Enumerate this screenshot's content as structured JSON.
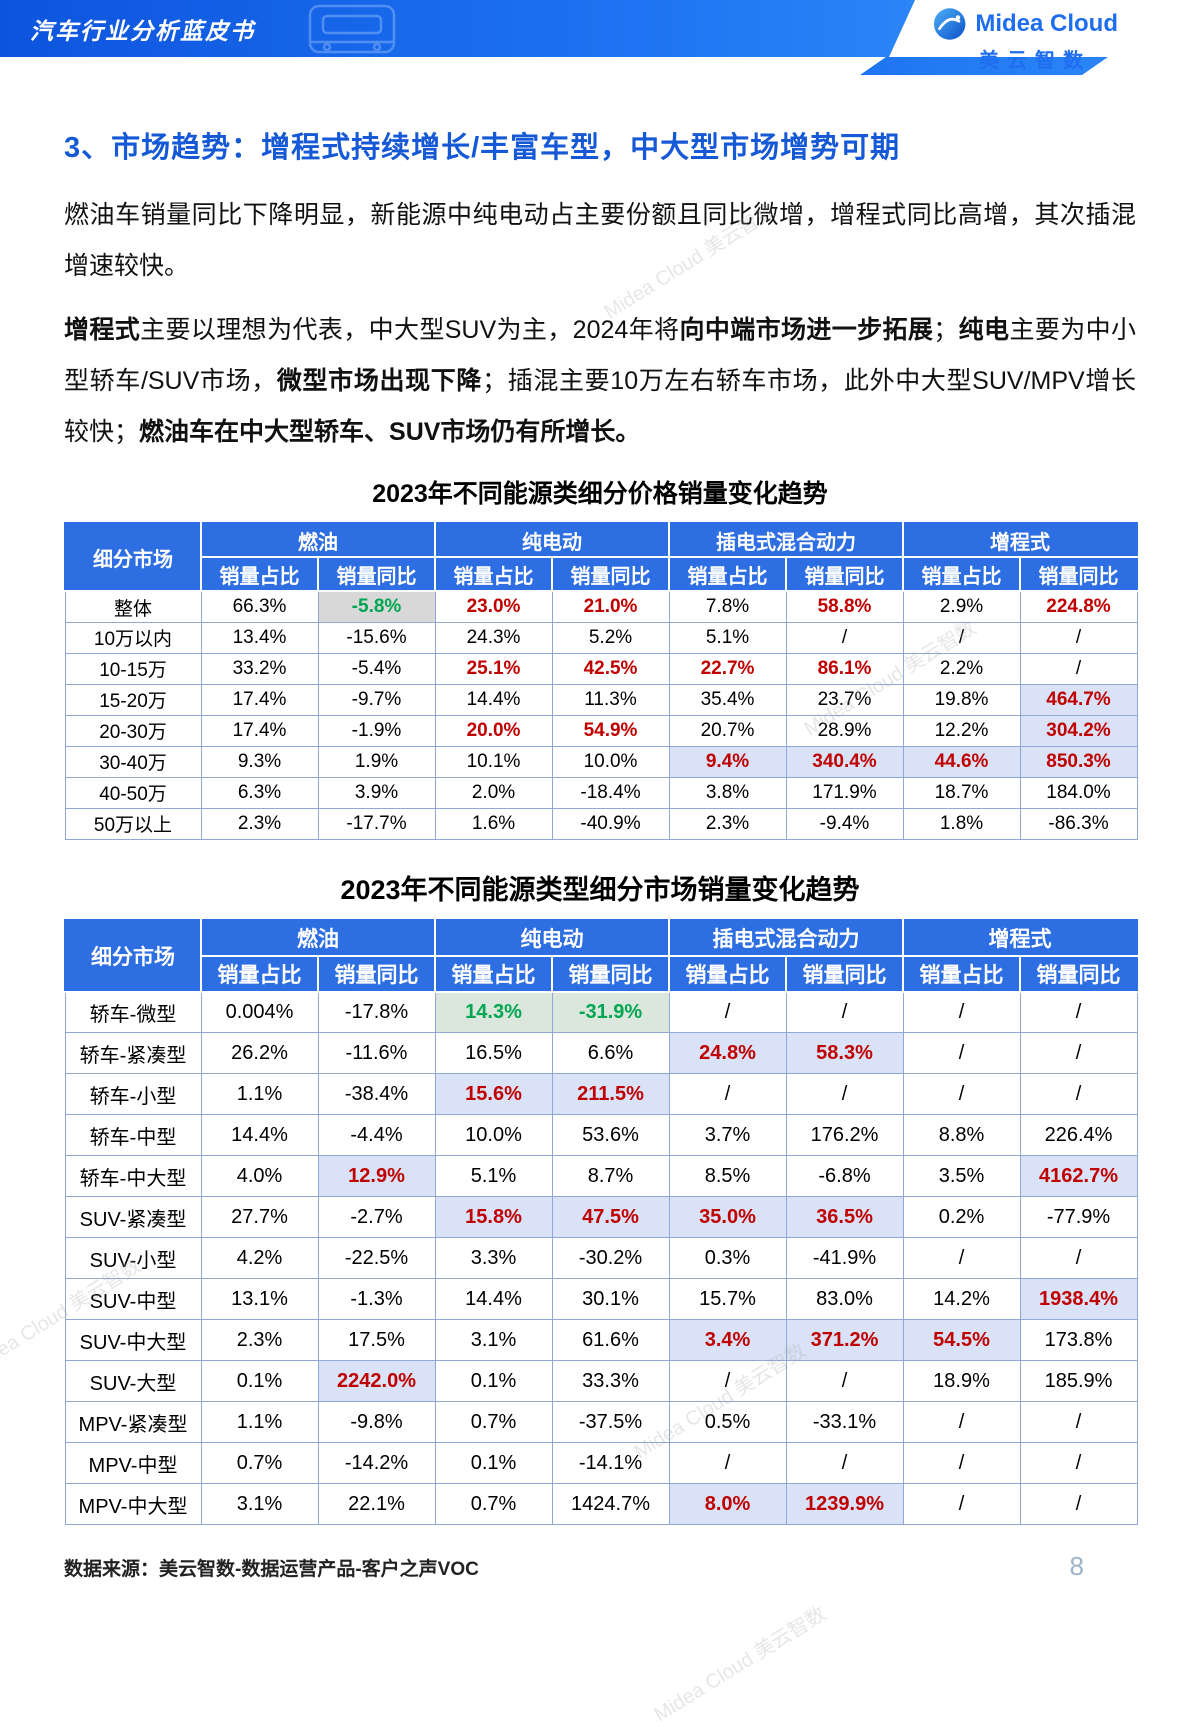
{
  "header": {
    "banner_title": "汽车行业分析蓝皮书",
    "logo_text": "Midea Cloud",
    "logo_subtext": "美云智数"
  },
  "page": {
    "section_title": "3、市场趋势：增程式持续增长/丰富车型，中大型市场增势可期",
    "intro1": "燃油车销量同比下降明显，新能源中纯电动占主要份额且同比微增，增程式同比高增，其次插混增速较快。",
    "intro2_segments": [
      {
        "text": "增程式",
        "bold": true
      },
      {
        "text": "主要以理想为代表，中大型SUV为主，2024年将",
        "bold": false
      },
      {
        "text": "向中端市场进一步拓展",
        "bold": true
      },
      {
        "text": "；",
        "bold": false
      },
      {
        "text": "纯电",
        "bold": true
      },
      {
        "text": "主要为中小型轿车/SUV市场，",
        "bold": false
      },
      {
        "text": "微型市场出现下降",
        "bold": true
      },
      {
        "text": "；插混主要10万左右轿车市场，此外中大型SUV/MPV增长较快；",
        "bold": false
      },
      {
        "text": "燃油车在中大型轿车、SUV市场仍有所增长。",
        "bold": true
      }
    ],
    "footer_source": "数据来源：美云智数-数据运营产品-客户之声VOC",
    "page_number": "8",
    "watermark": "Midea Cloud 美云智数"
  },
  "colors": {
    "banner_blue": "#1e74f2",
    "title_blue": "#1659d6",
    "table_header_blue": "#2d6ee2",
    "highlight_bg": "#d9e2f7",
    "up_red": "#c00000",
    "down_green": "#00a651"
  },
  "table_header": {
    "corner": "细分市场",
    "groups": [
      "燃油",
      "纯电动",
      "插电式混合动力",
      "增程式"
    ],
    "sub": [
      "销量占比",
      "销量同比"
    ]
  },
  "table1": {
    "title": "2023年不同能源类细分价格销量变化趋势",
    "rows": [
      {
        "label": "整体",
        "cells": [
          {
            "v": "66.3%",
            "s": "n"
          },
          {
            "v": "-5.8%",
            "s": "gg"
          },
          {
            "v": "23.0%",
            "s": "r"
          },
          {
            "v": "21.0%",
            "s": "r"
          },
          {
            "v": "7.8%",
            "s": "n"
          },
          {
            "v": "58.8%",
            "s": "r"
          },
          {
            "v": "2.9%",
            "s": "n"
          },
          {
            "v": "224.8%",
            "s": "r"
          }
        ]
      },
      {
        "label": "10万以内",
        "cells": [
          {
            "v": "13.4%",
            "s": "n"
          },
          {
            "v": "-15.6%",
            "s": "n"
          },
          {
            "v": "24.3%",
            "s": "n"
          },
          {
            "v": "5.2%",
            "s": "n"
          },
          {
            "v": "5.1%",
            "s": "n"
          },
          {
            "v": "/",
            "s": "n"
          },
          {
            "v": "/",
            "s": "n"
          },
          {
            "v": "/",
            "s": "n"
          }
        ]
      },
      {
        "label": "10-15万",
        "cells": [
          {
            "v": "33.2%",
            "s": "n"
          },
          {
            "v": "-5.4%",
            "s": "n"
          },
          {
            "v": "25.1%",
            "s": "r"
          },
          {
            "v": "42.5%",
            "s": "r"
          },
          {
            "v": "22.7%",
            "s": "r"
          },
          {
            "v": "86.1%",
            "s": "r"
          },
          {
            "v": "2.2%",
            "s": "n"
          },
          {
            "v": "/",
            "s": "n"
          }
        ]
      },
      {
        "label": "15-20万",
        "cells": [
          {
            "v": "17.4%",
            "s": "n"
          },
          {
            "v": "-9.7%",
            "s": "n"
          },
          {
            "v": "14.4%",
            "s": "n"
          },
          {
            "v": "11.3%",
            "s": "n"
          },
          {
            "v": "35.4%",
            "s": "n"
          },
          {
            "v": "23.7%",
            "s": "n"
          },
          {
            "v": "19.8%",
            "s": "n"
          },
          {
            "v": "464.7%",
            "s": "rh"
          }
        ]
      },
      {
        "label": "20-30万",
        "cells": [
          {
            "v": "17.4%",
            "s": "n"
          },
          {
            "v": "-1.9%",
            "s": "n"
          },
          {
            "v": "20.0%",
            "s": "r"
          },
          {
            "v": "54.9%",
            "s": "r"
          },
          {
            "v": "20.7%",
            "s": "n"
          },
          {
            "v": "28.9%",
            "s": "n"
          },
          {
            "v": "12.2%",
            "s": "n"
          },
          {
            "v": "304.2%",
            "s": "rh"
          }
        ]
      },
      {
        "label": "30-40万",
        "cells": [
          {
            "v": "9.3%",
            "s": "n"
          },
          {
            "v": "1.9%",
            "s": "n"
          },
          {
            "v": "10.1%",
            "s": "n"
          },
          {
            "v": "10.0%",
            "s": "n"
          },
          {
            "v": "9.4%",
            "s": "rh"
          },
          {
            "v": "340.4%",
            "s": "rh"
          },
          {
            "v": "44.6%",
            "s": "rh"
          },
          {
            "v": "850.3%",
            "s": "rh"
          }
        ]
      },
      {
        "label": "40-50万",
        "cells": [
          {
            "v": "6.3%",
            "s": "n"
          },
          {
            "v": "3.9%",
            "s": "n"
          },
          {
            "v": "2.0%",
            "s": "n"
          },
          {
            "v": "-18.4%",
            "s": "n"
          },
          {
            "v": "3.8%",
            "s": "n"
          },
          {
            "v": "171.9%",
            "s": "n"
          },
          {
            "v": "18.7%",
            "s": "n"
          },
          {
            "v": "184.0%",
            "s": "n"
          }
        ]
      },
      {
        "label": "50万以上",
        "cells": [
          {
            "v": "2.3%",
            "s": "n"
          },
          {
            "v": "-17.7%",
            "s": "n"
          },
          {
            "v": "1.6%",
            "s": "n"
          },
          {
            "v": "-40.9%",
            "s": "n"
          },
          {
            "v": "2.3%",
            "s": "n"
          },
          {
            "v": "-9.4%",
            "s": "n"
          },
          {
            "v": "1.8%",
            "s": "n"
          },
          {
            "v": "-86.3%",
            "s": "n"
          }
        ]
      }
    ]
  },
  "table2": {
    "title": "2023年不同能源类型细分市场销量变化趋势",
    "rows": [
      {
        "label": "轿车-微型",
        "cells": [
          {
            "v": "0.004%",
            "s": "n"
          },
          {
            "v": "-17.8%",
            "s": "n"
          },
          {
            "v": "14.3%",
            "s": "gh"
          },
          {
            "v": "-31.9%",
            "s": "gh"
          },
          {
            "v": "/",
            "s": "n"
          },
          {
            "v": "/",
            "s": "n"
          },
          {
            "v": "/",
            "s": "n"
          },
          {
            "v": "/",
            "s": "n"
          }
        ]
      },
      {
        "label": "轿车-紧凑型",
        "cells": [
          {
            "v": "26.2%",
            "s": "n"
          },
          {
            "v": "-11.6%",
            "s": "n"
          },
          {
            "v": "16.5%",
            "s": "n"
          },
          {
            "v": "6.6%",
            "s": "n"
          },
          {
            "v": "24.8%",
            "s": "rh"
          },
          {
            "v": "58.3%",
            "s": "rh"
          },
          {
            "v": "/",
            "s": "n"
          },
          {
            "v": "/",
            "s": "n"
          }
        ]
      },
      {
        "label": "轿车-小型",
        "cells": [
          {
            "v": "1.1%",
            "s": "n"
          },
          {
            "v": "-38.4%",
            "s": "n"
          },
          {
            "v": "15.6%",
            "s": "rh"
          },
          {
            "v": "211.5%",
            "s": "rh"
          },
          {
            "v": "/",
            "s": "n"
          },
          {
            "v": "/",
            "s": "n"
          },
          {
            "v": "/",
            "s": "n"
          },
          {
            "v": "/",
            "s": "n"
          }
        ]
      },
      {
        "label": "轿车-中型",
        "cells": [
          {
            "v": "14.4%",
            "s": "n"
          },
          {
            "v": "-4.4%",
            "s": "n"
          },
          {
            "v": "10.0%",
            "s": "n"
          },
          {
            "v": "53.6%",
            "s": "n"
          },
          {
            "v": "3.7%",
            "s": "n"
          },
          {
            "v": "176.2%",
            "s": "n"
          },
          {
            "v": "8.8%",
            "s": "n"
          },
          {
            "v": "226.4%",
            "s": "n"
          }
        ]
      },
      {
        "label": "轿车-中大型",
        "cells": [
          {
            "v": "4.0%",
            "s": "n"
          },
          {
            "v": "12.9%",
            "s": "rh"
          },
          {
            "v": "5.1%",
            "s": "n"
          },
          {
            "v": "8.7%",
            "s": "n"
          },
          {
            "v": "8.5%",
            "s": "n"
          },
          {
            "v": "-6.8%",
            "s": "n"
          },
          {
            "v": "3.5%",
            "s": "n"
          },
          {
            "v": "4162.7%",
            "s": "rh"
          }
        ]
      },
      {
        "label": "SUV-紧凑型",
        "cells": [
          {
            "v": "27.7%",
            "s": "n"
          },
          {
            "v": "-2.7%",
            "s": "n"
          },
          {
            "v": "15.8%",
            "s": "rh"
          },
          {
            "v": "47.5%",
            "s": "rh"
          },
          {
            "v": "35.0%",
            "s": "rh"
          },
          {
            "v": "36.5%",
            "s": "rh"
          },
          {
            "v": "0.2%",
            "s": "n"
          },
          {
            "v": "-77.9%",
            "s": "n"
          }
        ]
      },
      {
        "label": "SUV-小型",
        "cells": [
          {
            "v": "4.2%",
            "s": "n"
          },
          {
            "v": "-22.5%",
            "s": "n"
          },
          {
            "v": "3.3%",
            "s": "n"
          },
          {
            "v": "-30.2%",
            "s": "n"
          },
          {
            "v": "0.3%",
            "s": "n"
          },
          {
            "v": "-41.9%",
            "s": "n"
          },
          {
            "v": "/",
            "s": "n"
          },
          {
            "v": "/",
            "s": "n"
          }
        ]
      },
      {
        "label": "SUV-中型",
        "cells": [
          {
            "v": "13.1%",
            "s": "n"
          },
          {
            "v": "-1.3%",
            "s": "n"
          },
          {
            "v": "14.4%",
            "s": "n"
          },
          {
            "v": "30.1%",
            "s": "n"
          },
          {
            "v": "15.7%",
            "s": "n"
          },
          {
            "v": "83.0%",
            "s": "n"
          },
          {
            "v": "14.2%",
            "s": "n"
          },
          {
            "v": "1938.4%",
            "s": "rh"
          }
        ]
      },
      {
        "label": "SUV-中大型",
        "cells": [
          {
            "v": "2.3%",
            "s": "n"
          },
          {
            "v": "17.5%",
            "s": "n"
          },
          {
            "v": "3.1%",
            "s": "n"
          },
          {
            "v": "61.6%",
            "s": "n"
          },
          {
            "v": "3.4%",
            "s": "rh"
          },
          {
            "v": "371.2%",
            "s": "rh"
          },
          {
            "v": "54.5%",
            "s": "rh"
          },
          {
            "v": "173.8%",
            "s": "n"
          }
        ]
      },
      {
        "label": "SUV-大型",
        "cells": [
          {
            "v": "0.1%",
            "s": "n"
          },
          {
            "v": "2242.0%",
            "s": "rh"
          },
          {
            "v": "0.1%",
            "s": "n"
          },
          {
            "v": "33.3%",
            "s": "n"
          },
          {
            "v": "/",
            "s": "n"
          },
          {
            "v": "/",
            "s": "n"
          },
          {
            "v": "18.9%",
            "s": "n"
          },
          {
            "v": "185.9%",
            "s": "n"
          }
        ]
      },
      {
        "label": "MPV-紧凑型",
        "cells": [
          {
            "v": "1.1%",
            "s": "n"
          },
          {
            "v": "-9.8%",
            "s": "n"
          },
          {
            "v": "0.7%",
            "s": "n"
          },
          {
            "v": "-37.5%",
            "s": "n"
          },
          {
            "v": "0.5%",
            "s": "n"
          },
          {
            "v": "-33.1%",
            "s": "n"
          },
          {
            "v": "/",
            "s": "n"
          },
          {
            "v": "/",
            "s": "n"
          }
        ]
      },
      {
        "label": "MPV-中型",
        "cells": [
          {
            "v": "0.7%",
            "s": "n"
          },
          {
            "v": "-14.2%",
            "s": "n"
          },
          {
            "v": "0.1%",
            "s": "n"
          },
          {
            "v": "-14.1%",
            "s": "n"
          },
          {
            "v": "/",
            "s": "n"
          },
          {
            "v": "/",
            "s": "n"
          },
          {
            "v": "/",
            "s": "n"
          },
          {
            "v": "/",
            "s": "n"
          }
        ]
      },
      {
        "label": "MPV-中大型",
        "cells": [
          {
            "v": "3.1%",
            "s": "n"
          },
          {
            "v": "22.1%",
            "s": "n"
          },
          {
            "v": "0.7%",
            "s": "n"
          },
          {
            "v": "1424.7%",
            "s": "n"
          },
          {
            "v": "8.0%",
            "s": "rh"
          },
          {
            "v": "1239.9%",
            "s": "rh"
          },
          {
            "v": "/",
            "s": "n"
          },
          {
            "v": "/",
            "s": "n"
          }
        ]
      }
    ]
  }
}
